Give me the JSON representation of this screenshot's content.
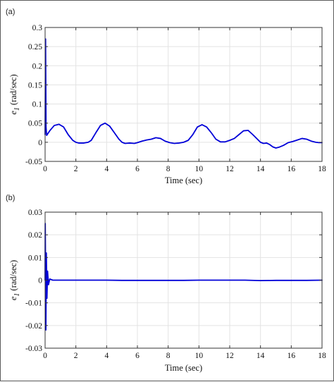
{
  "chart_data": [
    {
      "type": "line",
      "panel_label": "(a)",
      "xlabel": "Time (sec)",
      "ylabel": "e 1 (rad/sec)",
      "xlim": [
        0,
        18
      ],
      "ylim": [
        -0.05,
        0.3
      ],
      "xticks": [
        0,
        2,
        4,
        6,
        8,
        10,
        12,
        14,
        16,
        18
      ],
      "xtick_labels": [
        "0",
        "2",
        "4",
        "6",
        "8",
        "10",
        "12",
        "14",
        "16",
        "18"
      ],
      "yticks": [
        -0.05,
        0,
        0.05,
        0.1,
        0.15,
        0.2,
        0.25,
        0.3
      ],
      "ytick_labels": [
        "-0.05",
        "0",
        "0.05",
        "0.1",
        "0.15",
        "0.2",
        "0.25",
        "0.3"
      ],
      "grid": true,
      "color": "#0000d8",
      "series": [
        {
          "x": [
            0,
            0.03,
            0.06,
            0.1,
            0.3,
            0.6,
            0.9,
            1.2,
            1.5,
            1.8,
            2.0,
            2.2,
            2.5,
            2.8,
            3.0,
            3.3,
            3.6,
            3.9,
            4.2,
            4.5,
            4.8,
            5.0,
            5.2,
            5.5,
            5.8,
            6.0,
            6.3,
            6.6,
            6.9,
            7.2,
            7.5,
            7.8,
            8.1,
            8.4,
            8.7,
            9.0,
            9.3,
            9.6,
            9.9,
            10.2,
            10.5,
            10.8,
            11.1,
            11.4,
            11.7,
            12.0,
            12.3,
            12.6,
            12.9,
            13.2,
            13.5,
            13.8,
            14.0,
            14.2,
            14.4,
            14.6,
            14.8,
            15.0,
            15.2,
            15.5,
            15.8,
            16.1,
            16.4,
            16.7,
            17.0,
            17.3,
            17.6,
            17.8,
            18.0
          ],
          "y": [
            0.02,
            0.27,
            0.04,
            0.018,
            0.03,
            0.044,
            0.047,
            0.04,
            0.02,
            0.005,
            0.0,
            -0.002,
            -0.002,
            0.0,
            0.005,
            0.025,
            0.044,
            0.05,
            0.042,
            0.025,
            0.008,
            0.0,
            -0.003,
            -0.002,
            -0.003,
            -0.001,
            0.003,
            0.006,
            0.008,
            0.012,
            0.01,
            0.003,
            -0.001,
            -0.003,
            -0.002,
            0.0,
            0.005,
            0.02,
            0.04,
            0.046,
            0.04,
            0.025,
            0.008,
            0.001,
            0.001,
            0.005,
            0.01,
            0.02,
            0.03,
            0.031,
            0.02,
            0.008,
            0.0,
            -0.003,
            -0.002,
            -0.006,
            -0.012,
            -0.015,
            -0.013,
            -0.008,
            -0.001,
            0.002,
            0.006,
            0.01,
            0.008,
            0.003,
            0.0,
            -0.001,
            -0.001
          ]
        }
      ]
    },
    {
      "type": "line",
      "panel_label": "(b)",
      "xlabel": "Time (sec)",
      "ylabel": "e 1 (rad/sec)",
      "xlim": [
        0,
        18
      ],
      "ylim": [
        -0.03,
        0.03
      ],
      "xticks": [
        0,
        2,
        4,
        6,
        8,
        10,
        12,
        14,
        16,
        18
      ],
      "xtick_labels": [
        "0",
        "2",
        "4",
        "6",
        "8",
        "10",
        "12",
        "14",
        "16",
        "18"
      ],
      "yticks": [
        -0.03,
        -0.02,
        -0.01,
        0,
        0.01,
        0.02,
        0.03
      ],
      "ytick_labels": [
        "-0.03",
        "-0.02",
        "-0.01",
        "0",
        "0.01",
        "0.02",
        "0.03"
      ],
      "grid": true,
      "color": "#0000d8",
      "series": [
        {
          "x": [
            0,
            0.01,
            0.025,
            0.05,
            0.08,
            0.12,
            0.16,
            0.22,
            0.3,
            0.5,
            1.0,
            2.0,
            4.0,
            5.0,
            6.0,
            7.0,
            8.0,
            9.0,
            10.0,
            11.0,
            12.0,
            13.0,
            14.0,
            15.0,
            16.0,
            17.0,
            18.0
          ],
          "y": [
            0,
            0.025,
            0.01,
            -0.022,
            0.012,
            -0.008,
            0.004,
            -0.002,
            0.0005,
            0.0,
            0.0,
            0.0,
            0.0,
            -0.0001,
            -0.0001,
            -0.0001,
            -0.0001,
            -0.0001,
            0.0,
            0.0,
            0.0,
            0.0,
            -0.0002,
            -0.0001,
            -0.0001,
            -0.0001,
            0.0
          ]
        }
      ]
    }
  ]
}
